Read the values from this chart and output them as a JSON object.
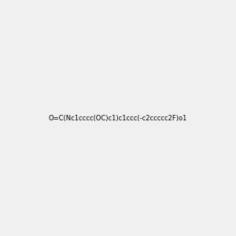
{
  "smiles": "O=C(Nc1cccc(OC)c1)c1ccc(-c2ccccc2F)o1",
  "image_size": 300,
  "background_color": "#f0f0f0",
  "atom_colors": {
    "O": "#ff0000",
    "N": "#0000ff",
    "F": "#ff00ff"
  }
}
